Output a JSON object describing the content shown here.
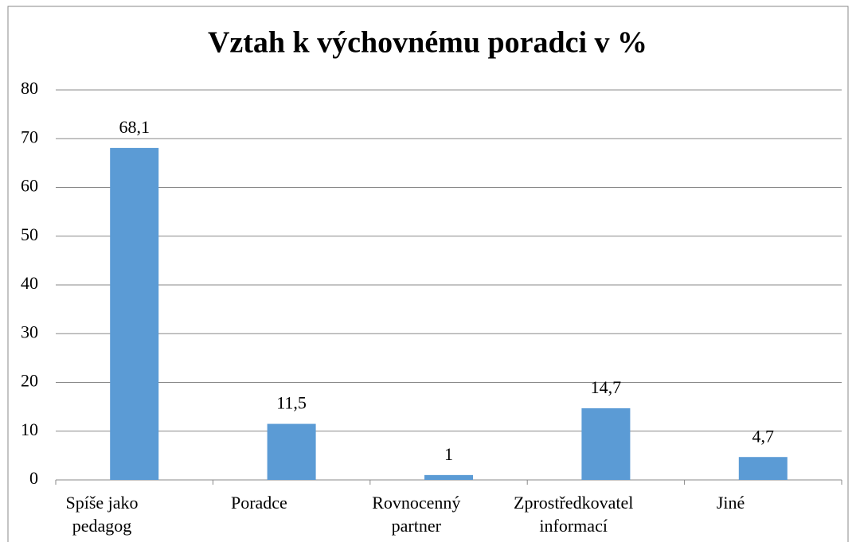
{
  "chart_data": {
    "type": "bar",
    "title": "Vztah k výchovnému poradci v %",
    "categories": [
      "Spíše jako pedagog",
      "Poradce",
      "Rovnocenný partner",
      "Zprostředkovatel informací",
      "Jiné"
    ],
    "values": [
      68.1,
      11.5,
      1,
      14.7,
      4.7
    ],
    "value_labels": [
      "68,1",
      "11,5",
      "1",
      "14,7",
      "4,7"
    ],
    "color": "#5b9bd5",
    "ylim": [
      0,
      80
    ],
    "yticks": [
      0,
      10,
      20,
      30,
      40,
      50,
      60,
      70,
      80
    ],
    "grid": true
  }
}
